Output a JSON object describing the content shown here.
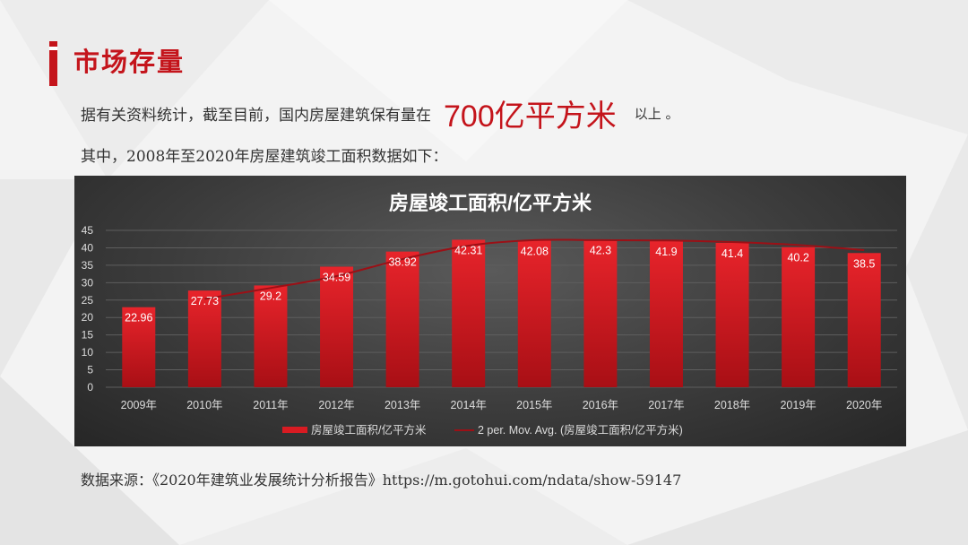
{
  "header": {
    "title": "市场存量"
  },
  "intro": {
    "prefix": "据有关资料统计，截至目前，国内房屋建筑保有量在",
    "highlight": "700亿平方米",
    "suffix": "以上 。",
    "line2": "其中，2008年至2020年房屋建筑竣工面积数据如下："
  },
  "source": {
    "text": "数据来源：《2020年建筑业发展统计分析报告》https://m.gotohui.com/ndata/show-59147"
  },
  "colors": {
    "accent": "#c4141b",
    "bar": "#d81b22",
    "trend": "#9b1016"
  },
  "chart_data": {
    "type": "bar",
    "title": "房屋竣工面积/亿平方米",
    "categories": [
      "2009年",
      "2010年",
      "2011年",
      "2012年",
      "2013年",
      "2014年",
      "2015年",
      "2016年",
      "2017年",
      "2018年",
      "2019年",
      "2020年"
    ],
    "series": [
      {
        "name": "房屋竣工面积/亿平方米",
        "type": "bar",
        "values": [
          22.96,
          27.73,
          29.2,
          34.59,
          38.92,
          42.31,
          42.08,
          42.3,
          41.9,
          41.4,
          40.2,
          38.5
        ],
        "labels": [
          "22.96",
          "27.73",
          "29.2",
          "34.59",
          "38.92",
          "42.31",
          "42.08",
          "42.3",
          "41.9",
          "41.4",
          "40.2",
          "38.5"
        ]
      },
      {
        "name": "2 per. Mov. Avg. (房屋竣工面积/亿平方米)",
        "type": "line",
        "trendline": "2-period moving average"
      }
    ],
    "ylim": [
      0,
      45
    ],
    "yticks": [
      "0",
      "5",
      "10",
      "15",
      "20",
      "25",
      "30",
      "35",
      "40",
      "45"
    ],
    "grid": true,
    "legend": "bottom"
  }
}
